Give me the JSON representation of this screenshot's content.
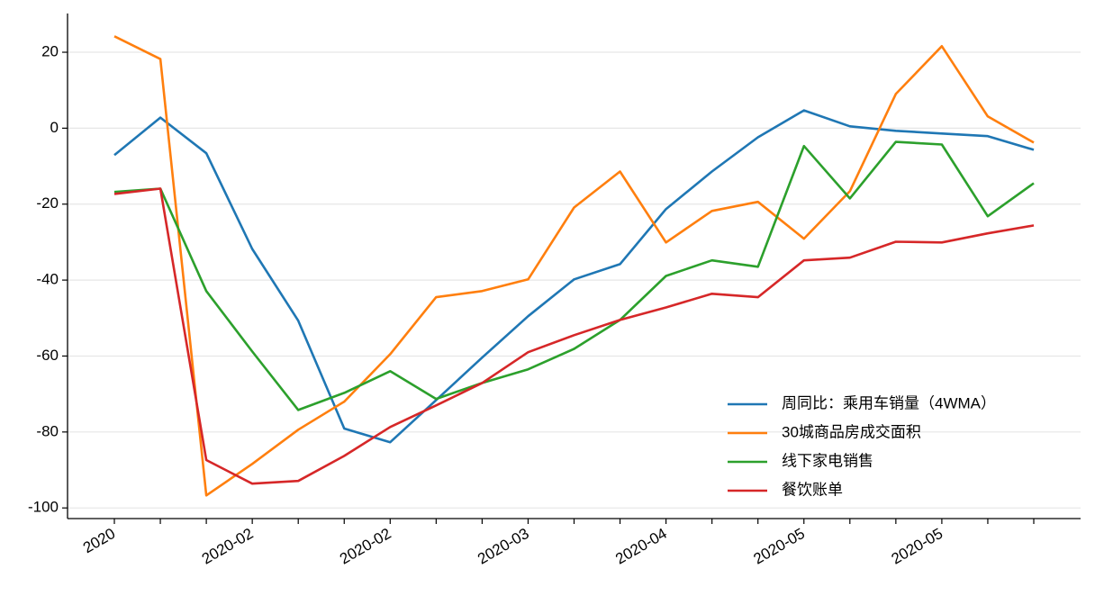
{
  "chart_data": {
    "type": "line",
    "categories": [
      "2020",
      null,
      null,
      "2020-02",
      null,
      null,
      "2020-02",
      null,
      null,
      "2020-03",
      null,
      null,
      "2020-04",
      null,
      null,
      "2020-05",
      null,
      null,
      "2020-05",
      null,
      null
    ],
    "series": [
      {
        "name": "周同比：乘用车销量（4WMA）",
        "color": "#1f77b4",
        "values": [
          -7.1,
          2.8,
          -6.6,
          -31.8,
          -50.7,
          -79.1,
          -82.7,
          -71.6,
          -60.4,
          -49.5,
          -39.8,
          -35.8,
          -21.3,
          -11.4,
          -2.4,
          4.7,
          0.5,
          -0.7,
          -1.4,
          -2.1,
          -5.7
        ]
      },
      {
        "name": "30城商品房成交面积",
        "color": "#ff7f0e",
        "values": [
          24.2,
          18.2,
          -96.7,
          -88.4,
          -79.4,
          -72,
          -59.5,
          -44.5,
          -42.9,
          -39.8,
          -20.9,
          -11.4,
          -30.1,
          -21.8,
          -19.4,
          -29.1,
          -16.6,
          9,
          21.6,
          3.1,
          -3.8
        ]
      },
      {
        "name": "线下家电销售",
        "color": "#2ca02c",
        "values": [
          -16.8,
          -15.9,
          -42.9,
          -58.8,
          -74.2,
          -69.7,
          -64,
          -71.3,
          -67.1,
          -63.5,
          -58.1,
          -50.5,
          -38.9,
          -34.8,
          -36.5,
          -4.7,
          -18.5,
          -3.6,
          -4.3,
          -23.2,
          -14.5
        ]
      },
      {
        "name": "餐饮账单",
        "color": "#d62728",
        "values": [
          -17.3,
          -15.9,
          -87.4,
          -93.6,
          -92.9,
          -86.3,
          -78.7,
          -73,
          -67.1,
          -59,
          -54.5,
          -50.5,
          -47.2,
          -43.6,
          -44.5,
          -34.8,
          -34.1,
          -29.9,
          -30.1,
          -27.7,
          -25.6
        ]
      }
    ],
    "ylim": [
      -102.8,
      30.2
    ],
    "yticks": [
      -100,
      -80,
      -60,
      -40,
      -20,
      0,
      20
    ],
    "grid": true,
    "legend": "lower right"
  }
}
